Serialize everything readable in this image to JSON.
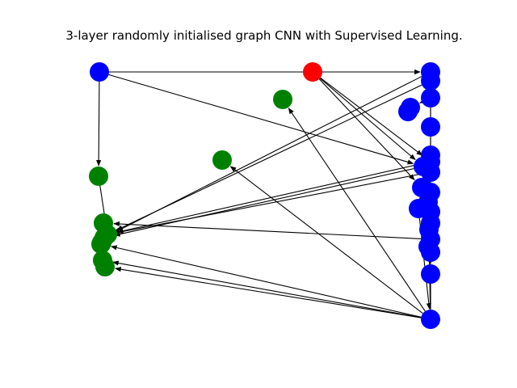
{
  "figure": {
    "title": "3-layer randomly initialised graph CNN with Supervised Learning."
  },
  "colors": {
    "blue": "#0000ff",
    "red": "#ff0000",
    "green": "#008000",
    "edge": "#000000",
    "background": "#ffffff"
  },
  "graph": {
    "directed": true,
    "node_groups": [
      {
        "color": "blue",
        "count": 26
      },
      {
        "color": "red",
        "count": 1
      },
      {
        "color": "green",
        "count": 11
      }
    ]
  }
}
